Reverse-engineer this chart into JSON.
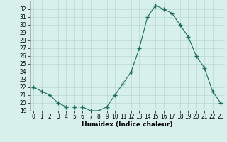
{
  "x": [
    0,
    1,
    2,
    3,
    4,
    5,
    6,
    7,
    8,
    9,
    10,
    11,
    12,
    13,
    14,
    15,
    16,
    17,
    18,
    19,
    20,
    21,
    22,
    23
  ],
  "y": [
    22.0,
    21.5,
    21.0,
    20.0,
    19.5,
    19.5,
    19.5,
    19.0,
    19.0,
    19.5,
    21.0,
    22.5,
    24.0,
    27.0,
    31.0,
    32.5,
    32.0,
    31.5,
    30.0,
    28.5,
    26.0,
    24.5,
    21.5,
    20.0
  ],
  "line_color": "#1a6b5a",
  "marker": "+",
  "marker_size": 4,
  "bg_color": "#d8f0ec",
  "grid_color": "#b8d8d0",
  "xlabel": "Humidex (Indice chaleur)",
  "ylim": [
    19,
    33
  ],
  "xlim": [
    -0.5,
    23.5
  ],
  "yticks": [
    19,
    20,
    21,
    22,
    23,
    24,
    25,
    26,
    27,
    28,
    29,
    30,
    31,
    32
  ],
  "xticks": [
    0,
    1,
    2,
    3,
    4,
    5,
    6,
    7,
    8,
    9,
    10,
    11,
    12,
    13,
    14,
    15,
    16,
    17,
    18,
    19,
    20,
    21,
    22,
    23
  ],
  "tick_fontsize": 5.5,
  "label_fontsize": 6.5
}
